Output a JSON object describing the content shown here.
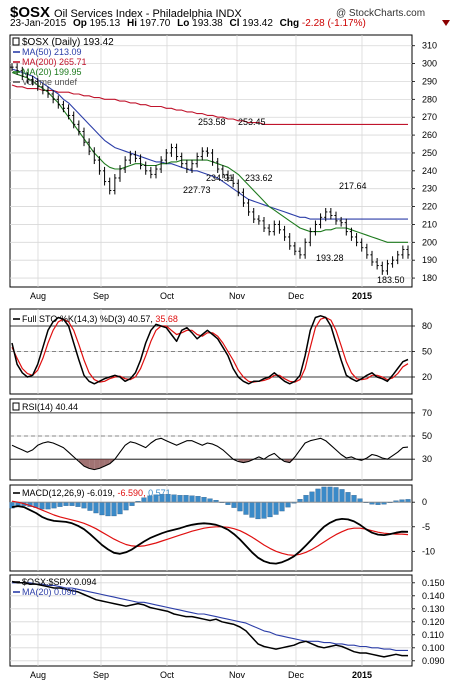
{
  "header": {
    "symbol": "$OSX",
    "name": "Oil Services Index - Philadelphia INDX",
    "date": "23-Jan-2015",
    "open_label": "Op",
    "open": "195.13",
    "high_label": "Hi",
    "high": "197.70",
    "low_label": "Lo",
    "low": "193.38",
    "close_label": "Cl",
    "close": "193.42",
    "change_label": "Chg",
    "change": "-2.28 (-1.17%)",
    "watermark": "@ StockCharts.com"
  },
  "colors": {
    "ma50": "#2c3ea8",
    "ma200": "#c0142c",
    "ma20": "#1e7a1e",
    "price": "#000000",
    "sto_k": "#000000",
    "sto_d": "#e01010",
    "rsi_fill": "#8a5050",
    "macd_hist": "#3a8ac8"
  },
  "chart_data": [
    {
      "type": "line",
      "panel": "price",
      "legend": [
        {
          "text": "$OSX (Daily) 193.42",
          "color": "#000000"
        },
        {
          "text": "MA(50) 213.09",
          "color": "#2c3ea8"
        },
        {
          "text": "MA(200) 265.71",
          "color": "#c0142c"
        },
        {
          "text": "MA(20) 199.95",
          "color": "#1e7a1e"
        },
        {
          "text": "Volume undef",
          "color": "#555555"
        }
      ],
      "x_labels": [
        "Aug",
        "Sep",
        "Oct",
        "Nov",
        "Dec",
        "2015",
        "Feb"
      ],
      "y_ticks": [
        180,
        190,
        200,
        210,
        220,
        230,
        240,
        250,
        260,
        270,
        280,
        290,
        300,
        310
      ],
      "ylim": [
        175,
        316
      ],
      "annotations": [
        "253.58",
        "253.45",
        "234.91",
        "233.62",
        "227.73",
        "217.64",
        "193.28",
        "183.50"
      ],
      "series": [
        {
          "name": "$OSX",
          "values": [
            298,
            296,
            293,
            291,
            290,
            287,
            285,
            283,
            280,
            277,
            275,
            271,
            266,
            262,
            256,
            251,
            246,
            240,
            234,
            229,
            236,
            241,
            246,
            249,
            247,
            243,
            240,
            238,
            241,
            246,
            250,
            253,
            248,
            244,
            241,
            244,
            248,
            251,
            250,
            245,
            241,
            238,
            236,
            233,
            228,
            222,
            217,
            213,
            212,
            208,
            206,
            210,
            207,
            203,
            198,
            195,
            193,
            200,
            206,
            210,
            214,
            217,
            215,
            212,
            211,
            206,
            203,
            200,
            197,
            193,
            189,
            187,
            184,
            188,
            190,
            193,
            196,
            193
          ]
        },
        {
          "name": "MA(50)",
          "values": [
            297,
            296,
            295,
            294,
            293,
            291,
            289,
            287,
            285,
            283,
            280,
            278,
            275,
            272,
            269,
            266,
            263,
            260,
            257,
            255,
            253,
            252,
            251,
            250,
            249,
            248,
            247,
            246,
            245,
            245,
            244,
            244,
            243,
            242,
            241,
            240,
            240,
            239,
            238,
            237,
            236,
            234,
            232,
            230,
            228,
            226,
            224,
            223,
            222,
            221,
            220,
            219,
            218,
            217,
            216,
            215,
            214,
            214,
            213,
            213,
            213,
            213,
            213,
            213,
            213,
            213,
            213,
            213,
            213,
            213,
            213,
            213,
            213,
            213,
            213,
            213,
            213,
            213
          ]
        },
        {
          "name": "MA(200)",
          "values": [
            288,
            287,
            287,
            286,
            286,
            286,
            285,
            285,
            285,
            284,
            284,
            284,
            283,
            283,
            282,
            282,
            281,
            281,
            280,
            280,
            280,
            279,
            279,
            278,
            278,
            277,
            277,
            276,
            276,
            276,
            275,
            275,
            274,
            274,
            273,
            273,
            272,
            272,
            271,
            271,
            270,
            270,
            269,
            269,
            268,
            268,
            267,
            267,
            267,
            266,
            266,
            266,
            266,
            266,
            266,
            266,
            266,
            266,
            266,
            266,
            266,
            266,
            266,
            266,
            266,
            266,
            266,
            266,
            266,
            266,
            266,
            266,
            266,
            266,
            266,
            266,
            266,
            266
          ]
        },
        {
          "name": "MA(20)",
          "values": [
            295,
            294,
            293,
            292,
            290,
            288,
            286,
            284,
            281,
            278,
            274,
            270,
            266,
            262,
            258,
            254,
            250,
            247,
            244,
            242,
            241,
            241,
            242,
            243,
            244,
            244,
            243,
            243,
            243,
            244,
            244,
            245,
            245,
            246,
            246,
            246,
            246,
            246,
            246,
            245,
            244,
            243,
            242,
            240,
            238,
            235,
            232,
            229,
            226,
            223,
            220,
            218,
            216,
            214,
            212,
            210,
            208,
            207,
            206,
            206,
            206,
            207,
            207,
            208,
            208,
            208,
            207,
            206,
            205,
            204,
            203,
            202,
            201,
            200,
            200,
            200,
            200,
            200
          ]
        }
      ]
    },
    {
      "type": "line",
      "panel": "stochastic",
      "label": "Full STO %K(14,3) %D(3) 40.57, 35.68",
      "label_parts": {
        "name": "Full STO %K(14,3) %D(3)",
        "k": "40.57",
        "d": "35.68"
      },
      "y_ticks": [
        20,
        50,
        80
      ],
      "ylim": [
        0,
        100
      ],
      "series": [
        {
          "name": "%K",
          "values": [
            60,
            35,
            25,
            20,
            22,
            35,
            55,
            75,
            85,
            90,
            88,
            80,
            60,
            40,
            22,
            15,
            12,
            15,
            18,
            20,
            22,
            20,
            15,
            18,
            25,
            40,
            60,
            75,
            82,
            80,
            78,
            70,
            62,
            75,
            78,
            72,
            65,
            70,
            75,
            70,
            65,
            55,
            45,
            30,
            20,
            15,
            12,
            15,
            15,
            18,
            20,
            25,
            20,
            15,
            12,
            15,
            22,
            45,
            75,
            90,
            92,
            90,
            80,
            60,
            40,
            22,
            18,
            15,
            18,
            22,
            25,
            20,
            18,
            15,
            22,
            30,
            38,
            40.57
          ]
        },
        {
          "name": "%D",
          "values": [
            55,
            42,
            30,
            24,
            22,
            28,
            42,
            60,
            75,
            85,
            88,
            85,
            75,
            58,
            40,
            25,
            17,
            14,
            15,
            18,
            20,
            21,
            18,
            17,
            20,
            30,
            45,
            62,
            75,
            80,
            80,
            75,
            70,
            72,
            75,
            75,
            70,
            68,
            72,
            72,
            68,
            60,
            50,
            40,
            28,
            20,
            15,
            14,
            15,
            16,
            18,
            22,
            22,
            18,
            15,
            14,
            17,
            30,
            55,
            78,
            88,
            90,
            87,
            75,
            57,
            38,
            25,
            18,
            17,
            18,
            22,
            22,
            20,
            17,
            19,
            24,
            32,
            35.68
          ]
        }
      ]
    },
    {
      "type": "line",
      "panel": "rsi",
      "label": "RSI(14) 40.44",
      "label_parts": {
        "name": "RSI(14)",
        "value": "40.44"
      },
      "y_ticks": [
        30,
        50,
        70
      ],
      "ylim": [
        12,
        82
      ],
      "series": [
        {
          "name": "RSI(14)",
          "values": [
            42,
            40,
            38,
            36,
            38,
            42,
            44,
            45,
            44,
            42,
            40,
            36,
            32,
            28,
            24,
            22,
            21,
            22,
            24,
            26,
            30,
            36,
            42,
            45,
            44,
            42,
            40,
            44,
            47,
            48,
            46,
            44,
            42,
            44,
            46,
            46,
            44,
            42,
            44,
            43,
            41,
            38,
            34,
            30,
            28,
            27,
            28,
            30,
            32,
            30,
            33,
            35,
            31,
            28,
            27,
            32,
            38,
            44,
            46,
            47,
            48,
            46,
            42,
            38,
            34,
            31,
            32,
            30,
            29,
            31,
            34,
            33,
            31,
            30,
            33,
            36,
            40,
            40.44
          ]
        }
      ]
    },
    {
      "type": "line",
      "panel": "macd",
      "label": "MACD(12,26,9) -6.019, -6.590, 0.571",
      "label_parts": {
        "name": "MACD(12,26,9)",
        "macd": "-6.019",
        "signal": "-6.590",
        "hist": "0.571"
      },
      "y_ticks": [
        -10,
        -5,
        0
      ],
      "ylim": [
        -14,
        3.5
      ],
      "series": [
        {
          "name": "MACD",
          "values": [
            -1,
            -0.8,
            -1,
            -1.6,
            -2.2,
            -3,
            -3.5,
            -3.8,
            -3.9,
            -4,
            -4.3,
            -4.8,
            -5.5,
            -6.5,
            -7.6,
            -8.7,
            -9.6,
            -10.3,
            -10.5,
            -10.2,
            -9.6,
            -8.8,
            -8,
            -7.3,
            -6.8,
            -6.3,
            -5.9,
            -5.6,
            -5.3,
            -4.9,
            -4.6,
            -4.4,
            -4.3,
            -4.4,
            -4.6,
            -5,
            -5.6,
            -6.5,
            -7.6,
            -8.9,
            -10.2,
            -11.3,
            -12,
            -12.4,
            -12.5,
            -12.2,
            -11.7,
            -11,
            -10,
            -8.8,
            -7.5,
            -6.2,
            -5,
            -4.2,
            -3.6,
            -3.4,
            -3.5,
            -3.9,
            -4.6,
            -5.5,
            -6.2,
            -6.6,
            -6.7,
            -6.5,
            -6.2,
            -6,
            -6.019
          ]
        },
        {
          "name": "Signal",
          "values": [
            0.2,
            0,
            -0.3,
            -0.7,
            -1.1,
            -1.6,
            -2.1,
            -2.6,
            -3,
            -3.3,
            -3.6,
            -3.9,
            -4.3,
            -4.8,
            -5.4,
            -6.1,
            -6.8,
            -7.5,
            -8.1,
            -8.6,
            -8.9,
            -9,
            -8.9,
            -8.6,
            -8.3,
            -7.9,
            -7.5,
            -7.1,
            -6.7,
            -6.3,
            -5.9,
            -5.6,
            -5.3,
            -5.1,
            -5,
            -5,
            -5.1,
            -5.4,
            -5.8,
            -6.4,
            -7.1,
            -7.9,
            -8.7,
            -9.4,
            -10,
            -10.4,
            -10.7,
            -10.8,
            -10.6,
            -10.2,
            -9.6,
            -8.9,
            -8.1,
            -7.3,
            -6.6,
            -6,
            -5.5,
            -5.3,
            -5.3,
            -5.5,
            -5.8,
            -6.1,
            -6.3,
            -6.4,
            -6.5,
            -6.5,
            -6.59
          ]
        }
      ]
    },
    {
      "type": "line",
      "panel": "ratio",
      "legend": [
        {
          "text": "$OSX:$SPX 0.094",
          "color": "#000000"
        },
        {
          "text": "MA(20) 0.098",
          "color": "#2c3ea8"
        }
      ],
      "y_ticks": [
        0.09,
        0.1,
        0.11,
        0.12,
        0.13,
        0.14,
        0.15
      ],
      "y_tick_labels": [
        "0.090",
        "0.100",
        "0.110",
        "0.120",
        "0.130",
        "0.140",
        "0.150"
      ],
      "ylim": [
        0.086,
        0.156
      ],
      "series": [
        {
          "name": "$OSX:$SPX",
          "values": [
            0.151,
            0.15,
            0.15,
            0.149,
            0.149,
            0.148,
            0.147,
            0.146,
            0.146,
            0.145,
            0.144,
            0.143,
            0.141,
            0.139,
            0.137,
            0.136,
            0.135,
            0.134,
            0.133,
            0.132,
            0.133,
            0.134,
            0.133,
            0.131,
            0.13,
            0.129,
            0.128,
            0.126,
            0.125,
            0.124,
            0.124,
            0.123,
            0.122,
            0.121,
            0.122,
            0.12,
            0.119,
            0.118,
            0.116,
            0.113,
            0.108,
            0.103,
            0.101,
            0.1,
            0.099,
            0.1,
            0.101,
            0.102,
            0.104,
            0.105,
            0.103,
            0.101,
            0.1,
            0.101,
            0.102,
            0.101,
            0.099,
            0.097,
            0.096,
            0.096,
            0.095,
            0.094,
            0.093,
            0.094,
            0.095,
            0.094,
            0.094
          ]
        },
        {
          "name": "MA(20)",
          "values": [
            0.15,
            0.15,
            0.15,
            0.15,
            0.149,
            0.149,
            0.148,
            0.148,
            0.147,
            0.146,
            0.146,
            0.145,
            0.144,
            0.143,
            0.142,
            0.141,
            0.14,
            0.139,
            0.138,
            0.137,
            0.136,
            0.135,
            0.135,
            0.134,
            0.133,
            0.132,
            0.131,
            0.13,
            0.129,
            0.128,
            0.127,
            0.126,
            0.126,
            0.125,
            0.124,
            0.123,
            0.122,
            0.121,
            0.12,
            0.119,
            0.117,
            0.115,
            0.113,
            0.112,
            0.11,
            0.109,
            0.108,
            0.107,
            0.106,
            0.105,
            0.105,
            0.105,
            0.104,
            0.104,
            0.103,
            0.103,
            0.102,
            0.102,
            0.101,
            0.101,
            0.1,
            0.1,
            0.099,
            0.099,
            0.098,
            0.098,
            0.098
          ]
        }
      ]
    }
  ]
}
